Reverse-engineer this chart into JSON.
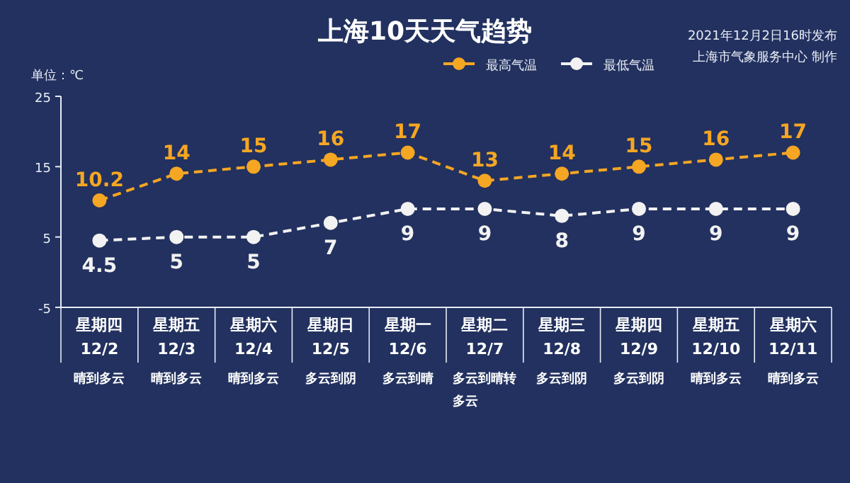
{
  "chart_data": {
    "type": "line",
    "title": "上海10天天气趋势",
    "ylabel": "单位：℃",
    "categories": [
      "星期四\n12/2",
      "星期五\n12/3",
      "星期六\n12/4",
      "星期日\n12/5",
      "星期一\n12/6",
      "星期二\n12/7",
      "星期三\n12/8",
      "星期四\n12/9",
      "星期五\n12/10",
      "星期六\n12/11"
    ],
    "series": [
      {
        "name": "最高气温",
        "color": "#f5a623",
        "values": [
          10.2,
          14,
          15,
          16,
          17,
          13,
          14,
          15,
          16,
          17
        ]
      },
      {
        "name": "最低气温",
        "color": "#f2f2f2",
        "values": [
          4.5,
          5,
          5,
          7,
          9,
          9,
          8,
          9,
          9,
          9
        ]
      }
    ],
    "ylim": [
      -5,
      25
    ],
    "yticks": [
      -5,
      5,
      15,
      25
    ],
    "marker": "circle",
    "line_style": "dashed",
    "data_labels": true,
    "legend": "top",
    "grid": false,
    "annotations": [
      "晴到多云",
      "晴到多云",
      "晴到多云",
      "多云到阴",
      "多云到晴",
      "多云到晴转多云",
      "多云到阴",
      "多云到阴",
      "晴到多云",
      "晴到多云",
      "2021年12月2日16时发布",
      "上海市气象服务中心 制作"
    ]
  }
}
